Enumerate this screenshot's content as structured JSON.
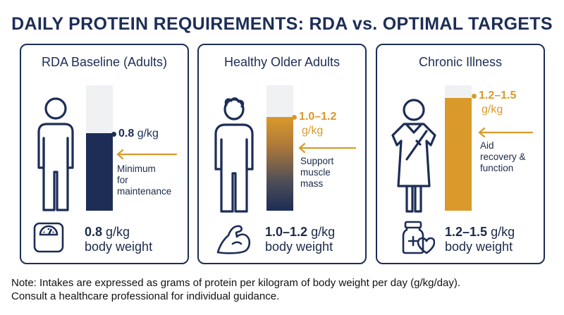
{
  "title": "DAILY PROTEIN REQUIREMENTS: RDA vs. OPTIMAL TARGETS",
  "colors": {
    "navy": "#1d2d56",
    "gold": "#d99a2b",
    "track": "#f0f1f3"
  },
  "chart_data": {
    "type": "bar",
    "categories": [
      "RDA Baseline (Adults)",
      "Healthy Older Adults",
      "Chronic Illness"
    ],
    "values_g_per_kg": [
      0.8,
      [
        1.0,
        1.2
      ],
      [
        1.2,
        1.5
      ]
    ],
    "unit": "g/kg"
  },
  "cards": [
    {
      "title": "RDA Baseline (Adults)",
      "figure_icon": "adult-person-icon",
      "fill_fraction": 0.62,
      "marker_value": "0.8",
      "marker_unit": "g/kg",
      "note_lines": [
        "Minimum",
        "for",
        "maintenance"
      ],
      "bottom_icon": "weight-scale-icon",
      "bottom_value": "0.8",
      "bottom_unit": "g/kg",
      "bottom_caption": "body weight"
    },
    {
      "title": "Healthy Older Adults",
      "figure_icon": "older-adult-icon",
      "fill_fraction": 0.75,
      "marker_value": "1.0–1.2",
      "marker_unit": "g/kg",
      "note_lines": [
        "Support",
        "muscle",
        "mass"
      ],
      "bottom_icon": "flexed-arm-icon",
      "bottom_value": "1.0–1.2",
      "bottom_unit": "g/kg",
      "bottom_caption": "body weight"
    },
    {
      "title": "Chronic Illness",
      "figure_icon": "patient-gown-icon",
      "fill_fraction": 0.9,
      "marker_value": "1.2–1.5",
      "marker_unit": "g/kg",
      "note_lines": [
        "Aid",
        "recovery &",
        "function"
      ],
      "bottom_icon": "medicine-bottle-heart-icon",
      "bottom_value": "1.2–1.5",
      "bottom_unit": "g/kg",
      "bottom_caption": "body weight"
    }
  ],
  "footnote": {
    "line1": "Note: Intakes are expressed as grams of protein per kilogram of body weight per day (g/kg/day).",
    "line2": "Consult a healthcare professional for individual guidance."
  }
}
